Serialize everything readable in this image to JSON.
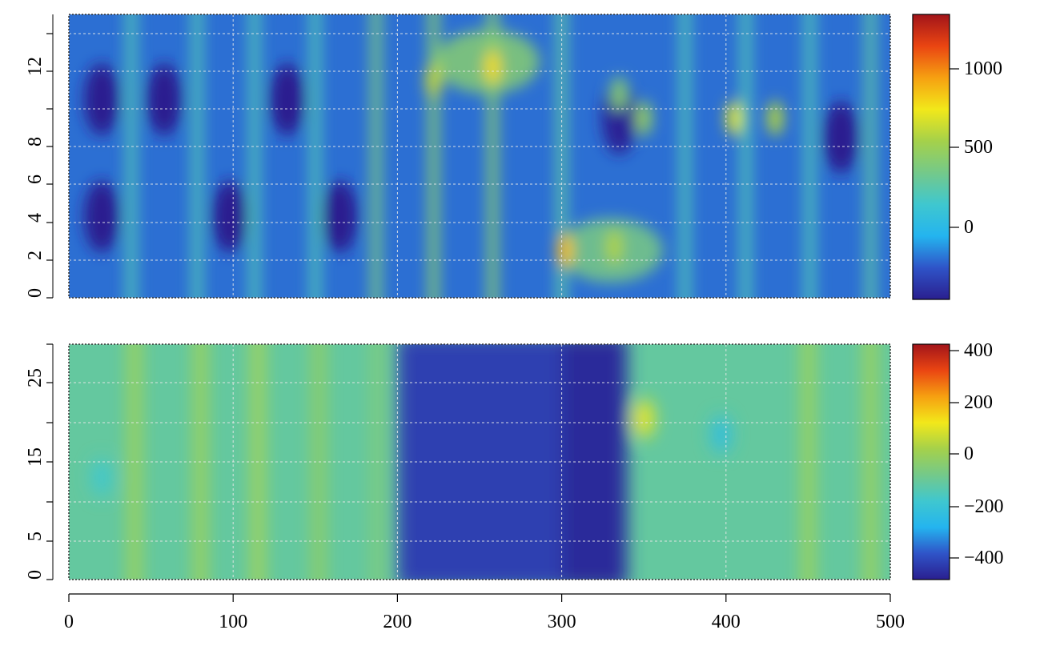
{
  "chart_data": [
    {
      "type": "heatmap",
      "title": "",
      "xlabel": "",
      "ylabel": "",
      "xlim": [
        0,
        500
      ],
      "ylim": [
        0,
        15
      ],
      "x_ticks": [
        0,
        100,
        200,
        300,
        400,
        500
      ],
      "y_tick_labels": [
        0,
        2,
        4,
        6,
        8,
        12
      ],
      "y_minor_ticks": [
        10,
        14
      ],
      "grid": true,
      "colorbar": {
        "range": [
          -400,
          1350
        ],
        "tick_labels": [
          0,
          500,
          1000
        ],
        "colors": [
          "#2a1f8f",
          "#2f54c8",
          "#24b4ef",
          "#3fc7cf",
          "#74c98a",
          "#a5d14a",
          "#f2e81a",
          "#f6a011",
          "#ea4512",
          "#a2141a"
        ]
      },
      "background_value": -150,
      "features": [
        {
          "kind": "vertical_band",
          "x": 38,
          "value": 250
        },
        {
          "kind": "vertical_band",
          "x": 78,
          "value": 250
        },
        {
          "kind": "vertical_band",
          "x": 113,
          "value": 250
        },
        {
          "kind": "vertical_band",
          "x": 150,
          "value": 250
        },
        {
          "kind": "vertical_band",
          "x": 187,
          "value": 400
        },
        {
          "kind": "vertical_band",
          "x": 222,
          "value": 450
        },
        {
          "kind": "vertical_band",
          "x": 258,
          "value": 450
        },
        {
          "kind": "vertical_band",
          "x": 300,
          "value": 300
        },
        {
          "kind": "vertical_band",
          "x": 375,
          "value": 250
        },
        {
          "kind": "vertical_band",
          "x": 412,
          "value": 250
        },
        {
          "kind": "vertical_band",
          "x": 451,
          "value": 250
        },
        {
          "kind": "vertical_band",
          "x": 488,
          "value": 300
        },
        {
          "kind": "dark_pocket",
          "x": 20,
          "y": 10.5,
          "value": -400
        },
        {
          "kind": "dark_pocket",
          "x": 58,
          "y": 10.5,
          "value": -400
        },
        {
          "kind": "dark_pocket",
          "x": 133,
          "y": 10.5,
          "value": -400
        },
        {
          "kind": "dark_pocket",
          "x": 20,
          "y": 4.3,
          "value": -400
        },
        {
          "kind": "dark_pocket",
          "x": 98,
          "y": 4.3,
          "value": -400
        },
        {
          "kind": "dark_pocket",
          "x": 165,
          "y": 4.3,
          "value": -400
        },
        {
          "kind": "dark_pocket",
          "x": 335,
          "y": 9.5,
          "value": -380
        },
        {
          "kind": "dark_pocket",
          "x": 470,
          "y": 8.5,
          "value": -400
        },
        {
          "kind": "green_patch",
          "x": 255,
          "y": 12.5,
          "value": 450
        },
        {
          "kind": "green_patch",
          "x": 330,
          "y": 2.5,
          "value": 400
        },
        {
          "kind": "hot_spot",
          "x": 258,
          "y": 12.2,
          "value": 800
        },
        {
          "kind": "hot_spot",
          "x": 222,
          "y": 11.5,
          "value": 650
        },
        {
          "kind": "hot_spot",
          "x": 302,
          "y": 2.5,
          "value": 880
        },
        {
          "kind": "hot_spot",
          "x": 332,
          "y": 2.7,
          "value": 600
        },
        {
          "kind": "hot_spot",
          "x": 405,
          "y": 9.5,
          "value": 700
        },
        {
          "kind": "hot_spot",
          "x": 430,
          "y": 9.5,
          "value": 600
        },
        {
          "kind": "hot_spot",
          "x": 350,
          "y": 9.5,
          "value": 500
        },
        {
          "kind": "hot_spot",
          "x": 335,
          "y": 10.8,
          "value": 450
        }
      ]
    },
    {
      "type": "heatmap",
      "title": "",
      "xlabel": "",
      "ylabel": "",
      "xlim": [
        0,
        500
      ],
      "ylim": [
        0,
        30
      ],
      "x_ticks": [
        0,
        100,
        200,
        300,
        400,
        500
      ],
      "x_tick_labels": [
        "0",
        "100",
        "200",
        "300",
        "400",
        "500"
      ],
      "y_tick_labels": [
        0,
        5,
        15,
        25
      ],
      "y_minor_ticks": [
        10,
        20,
        30
      ],
      "grid": true,
      "colorbar": {
        "range": [
          -480,
          420
        ],
        "tick_labels": [
          "400",
          "200",
          "0",
          "−200",
          "−400"
        ],
        "colors": [
          "#2a1f8f",
          "#2f54c8",
          "#24b4ef",
          "#3fc7cf",
          "#74c98a",
          "#a5d14a",
          "#f2e81a",
          "#f6a011",
          "#ea4512",
          "#a2141a"
        ]
      },
      "background_value": -110,
      "features": [
        {
          "kind": "yellow_band",
          "x": 40,
          "value": 40
        },
        {
          "kind": "yellow_band",
          "x": 80,
          "value": 40
        },
        {
          "kind": "yellow_band",
          "x": 115,
          "value": 50
        },
        {
          "kind": "yellow_band",
          "x": 152,
          "value": 10
        },
        {
          "kind": "yellow_band",
          "x": 188,
          "value": -40
        },
        {
          "kind": "yellow_band",
          "x": 450,
          "value": 40
        },
        {
          "kind": "yellow_band",
          "x": 488,
          "value": 40
        },
        {
          "kind": "orange_spot",
          "x": 350,
          "y": 20.5,
          "value": 120
        },
        {
          "kind": "cyan_spot",
          "x": 397,
          "y": 18.5,
          "value": -230
        },
        {
          "kind": "cyan_spot",
          "x": 20,
          "y": 13,
          "value": -180
        },
        {
          "kind": "dark_region",
          "x_range": [
            200,
            340
          ],
          "value": -420
        },
        {
          "kind": "dark_region",
          "x_range": [
            300,
            338
          ],
          "value": -460
        }
      ]
    }
  ]
}
